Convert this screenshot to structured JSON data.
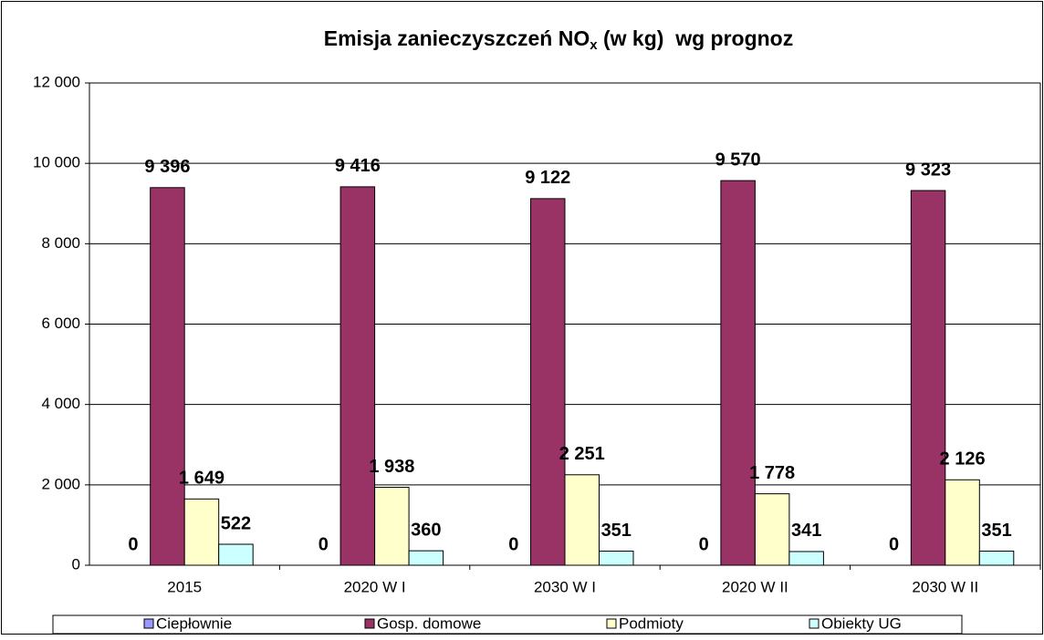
{
  "chart_data": {
    "type": "bar",
    "title": [
      "Emisja zanieczyszczeń NO",
      "x",
      " (w kg)  wg prognoz"
    ],
    "categories": [
      "2015",
      "2020 W I",
      "2030 W I",
      "2020 W II",
      "2030 W II"
    ],
    "series": [
      {
        "name": "Ciepłownie",
        "color": "#9999ff",
        "values": [
          0,
          0,
          0,
          0,
          0
        ]
      },
      {
        "name": "Gosp. domowe",
        "color": "#993366",
        "values": [
          9396,
          9416,
          9122,
          9570,
          9323
        ],
        "value_labels": [
          "9 396",
          "9 416",
          "9 122",
          "9 570",
          "9 323"
        ]
      },
      {
        "name": "Podmioty",
        "color": "#ffffcc",
        "values": [
          1649,
          1938,
          2251,
          1778,
          2126
        ],
        "value_labels": [
          "1 649",
          "1 938",
          "2 251",
          "1 778",
          "2 126"
        ]
      },
      {
        "name": "Obiekty UG",
        "color": "#ccffff",
        "values": [
          522,
          360,
          351,
          341,
          351
        ]
      }
    ],
    "ylim": [
      0,
      12000
    ],
    "yticks": [
      0,
      {
        "value": 2000,
        "label": "2 000"
      },
      {
        "value": 4000,
        "label": "4 000"
      },
      {
        "value": 6000,
        "label": "6 000"
      },
      {
        "value": 8000,
        "label": "8 000"
      },
      {
        "value": 10000,
        "label": "10 000"
      },
      {
        "value": 12000,
        "label": "12 000"
      }
    ],
    "grid": true,
    "legend": "bottom"
  }
}
